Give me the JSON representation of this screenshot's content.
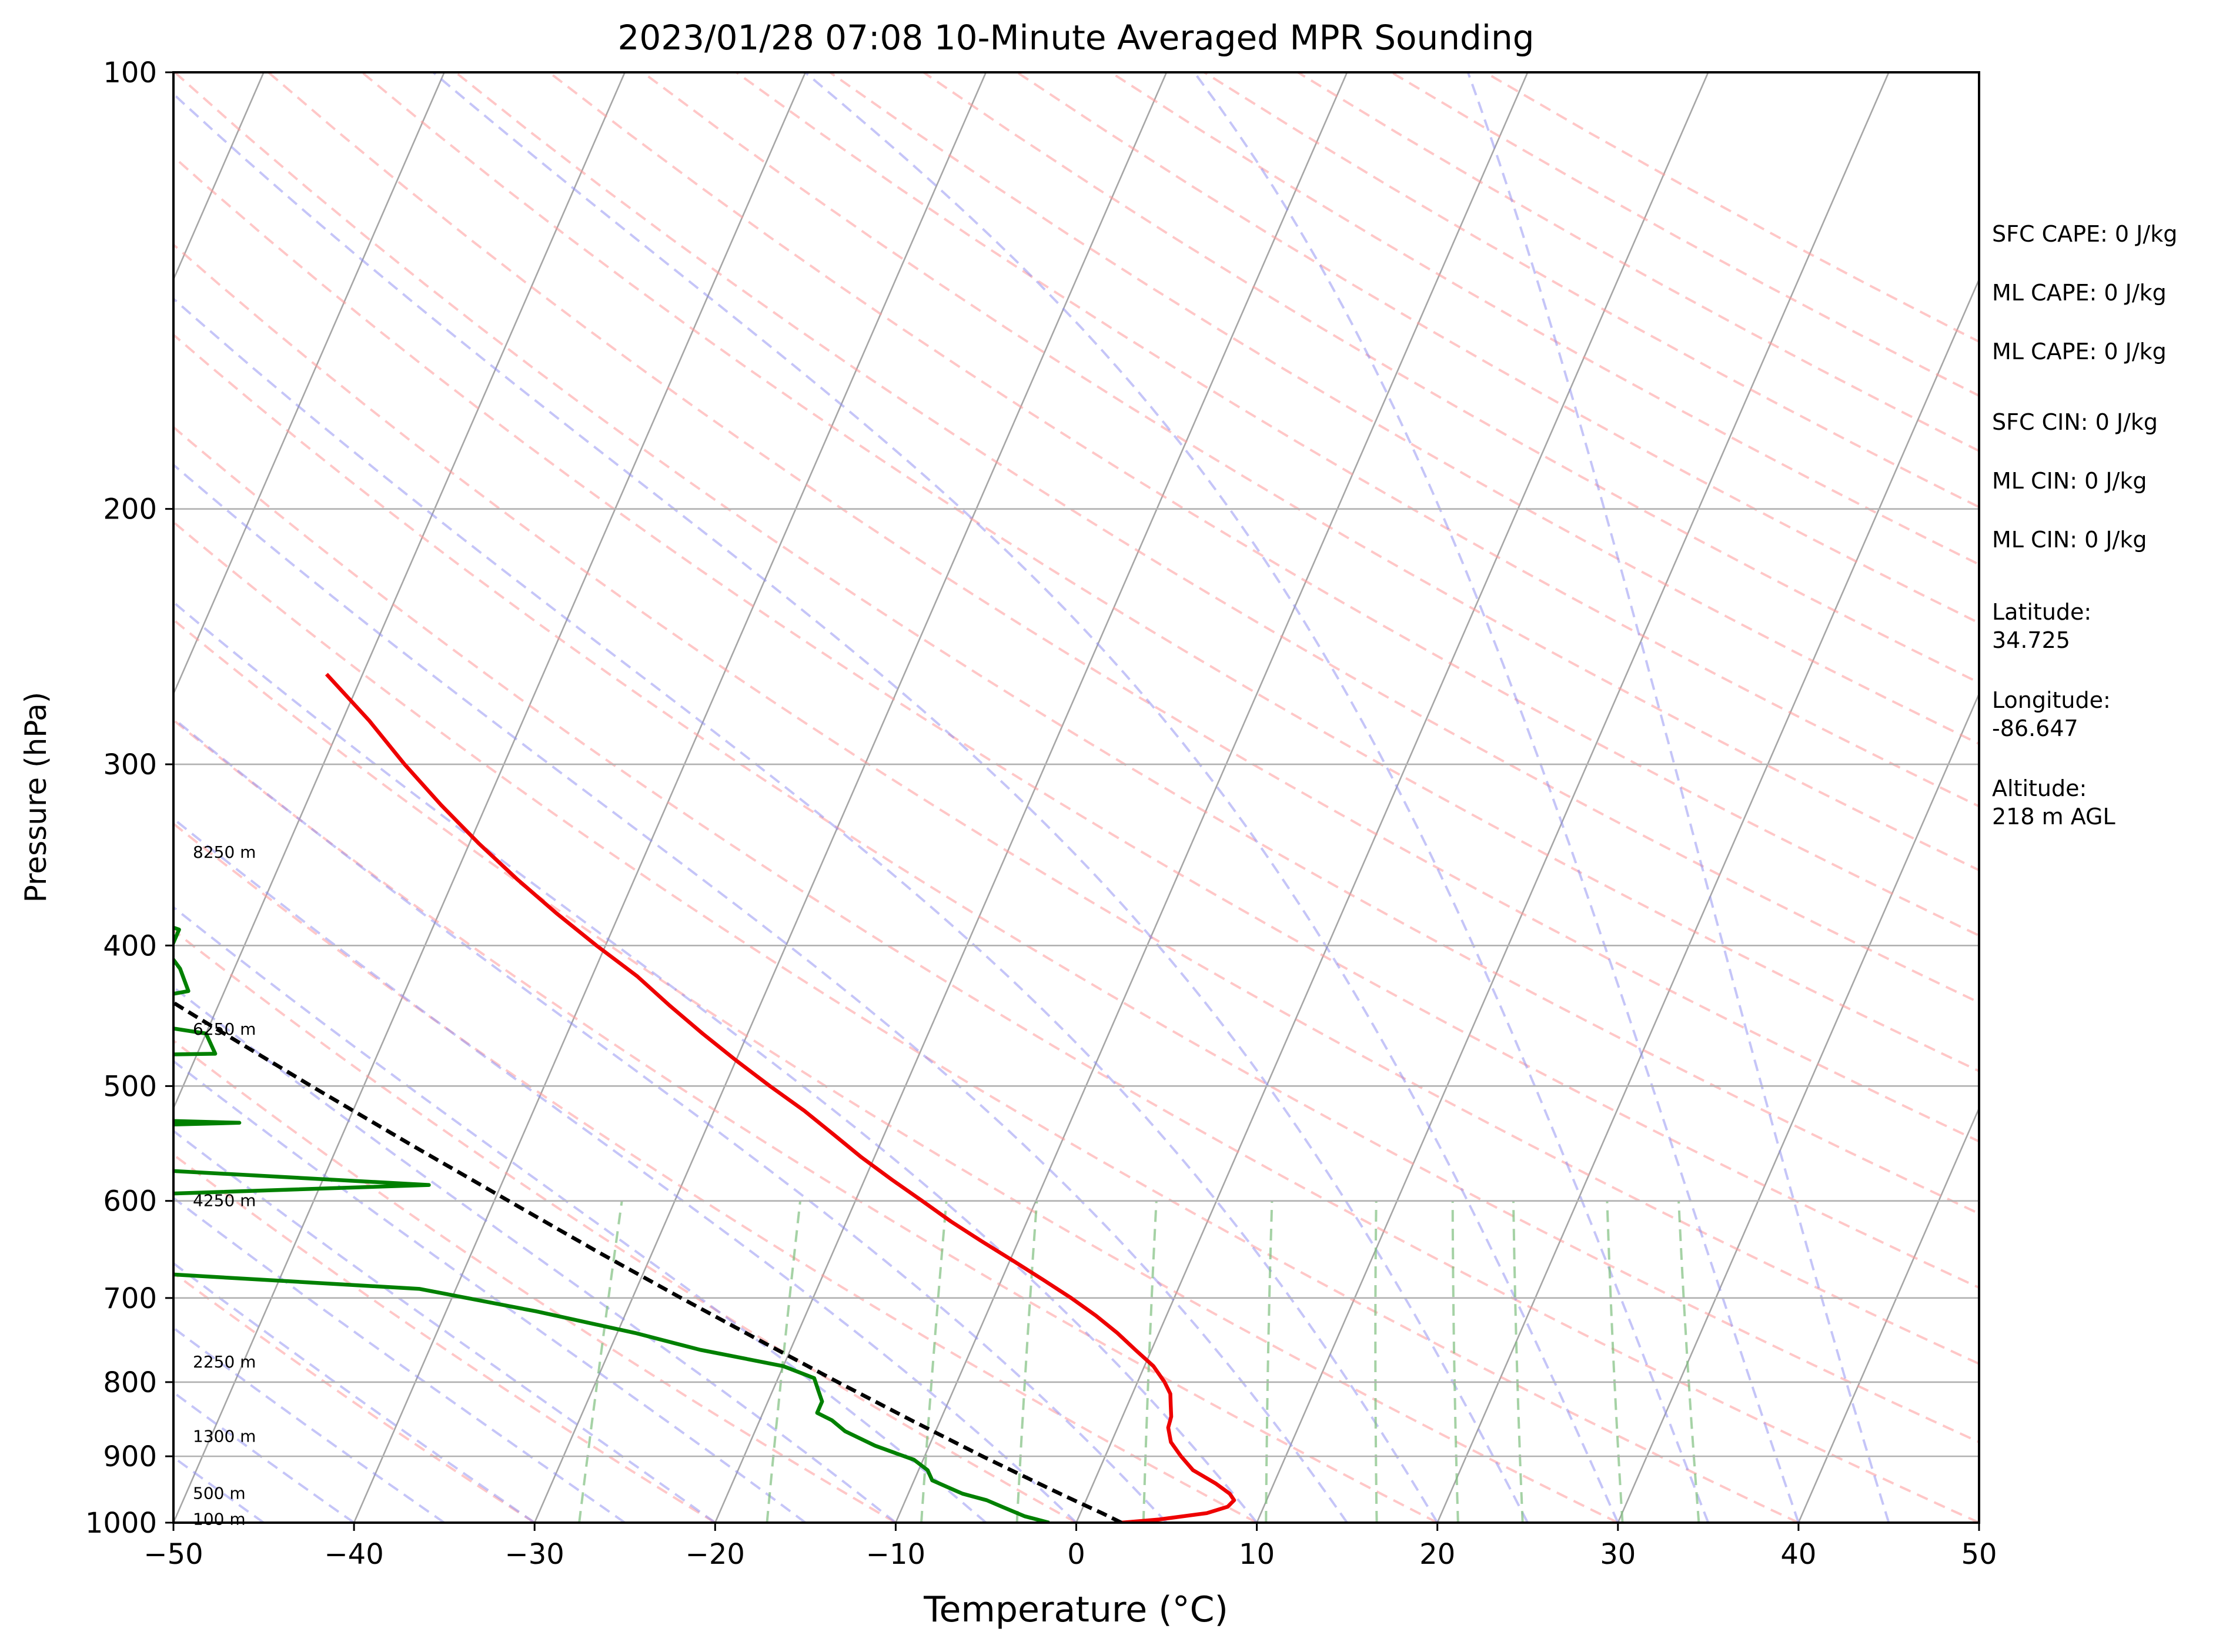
{
  "chart_data": {
    "type": "line",
    "subtype": "skew-T log-P sounding",
    "title": "2023/01/28 07:08 10-Minute Averaged MPR Sounding",
    "xlabel": "Temperature (°C)",
    "ylabel": "Pressure (hPa)",
    "xlim": [
      -50,
      50
    ],
    "ylim": [
      1000,
      100
    ],
    "y_scale": "log",
    "x_ticks": [
      "−50",
      "−40",
      "−30",
      "−20",
      "−10",
      "0",
      "10",
      "20",
      "30",
      "40",
      "50"
    ],
    "y_ticks": [
      "100",
      "200",
      "300",
      "400",
      "500",
      "600",
      "700",
      "800",
      "900",
      "1000"
    ],
    "grid": "horizontal isobars",
    "height_labels": [
      {
        "text": "8250 m",
        "pressure": 345
      },
      {
        "text": "6250 m",
        "pressure": 457
      },
      {
        "text": "4250 m",
        "pressure": 600
      },
      {
        "text": "2250 m",
        "pressure": 775
      },
      {
        "text": "1300 m",
        "pressure": 872
      },
      {
        "text": "500 m",
        "pressure": 955
      },
      {
        "text": "100 m",
        "pressure": 995
      }
    ],
    "series": [
      {
        "role": "temperature",
        "color": "#ee0000",
        "pressure": [
          1000,
          995,
          985,
          975,
          965,
          955,
          940,
          920,
          900,
          880,
          860,
          845,
          830,
          815,
          800,
          780,
          760,
          740,
          720,
          700,
          680,
          660,
          640,
          620,
          600,
          580,
          560,
          540,
          520,
          500,
          480,
          460,
          440,
          420,
          400,
          380,
          360,
          340,
          320,
          300,
          280,
          260
        ],
        "temperature": [
          2.5,
          4.5,
          7.0,
          8.0,
          8.2,
          7.8,
          6.8,
          5.2,
          4.2,
          3.3,
          2.8,
          2.7,
          2.4,
          2.1,
          1.5,
          0.5,
          -0.9,
          -2.3,
          -3.9,
          -5.7,
          -7.7,
          -9.8,
          -12.0,
          -14.2,
          -16.3,
          -18.5,
          -20.7,
          -22.8,
          -25.0,
          -27.5,
          -30.0,
          -32.5,
          -35.0,
          -37.5,
          -40.5,
          -43.5,
          -46.5,
          -49.5,
          -52.5,
          -55.5,
          -58.5,
          -62.0
        ]
      },
      {
        "role": "dewpoint",
        "color": "#008000",
        "pressure": [
          1000,
          990,
          975,
          965,
          955,
          945,
          935,
          920,
          905,
          885,
          865,
          850,
          840,
          825,
          810,
          795,
          780,
          760,
          740,
          715,
          690,
          670,
          665,
          605,
          600,
          585,
          570,
          555,
          540,
          530,
          520,
          510,
          480,
          475,
          460,
          445,
          430,
          415,
          405,
          390,
          370,
          355,
          335,
          320,
          315,
          300,
          290,
          280,
          265,
          262,
          261
        ],
        "temperature": [
          -1.5,
          -3,
          -4.5,
          -5.5,
          -7,
          -8,
          -9,
          -9.5,
          -10.5,
          -13,
          -15,
          -16,
          -17,
          -17,
          -17.5,
          -18,
          -20,
          -25,
          -29,
          -35,
          -42,
          -60,
          -72,
          -72,
          -70,
          -44,
          -61,
          -76,
          -81,
          -56,
          -81,
          -83,
          -83,
          -59,
          -60,
          -68,
          -62,
          -63,
          -64,
          -64,
          -70,
          -77,
          -74,
          -77,
          -76,
          -80,
          -91,
          -102,
          -101,
          -100,
          -76
        ]
      },
      {
        "role": "parcel-profile",
        "color": "#000000",
        "pressure": [
          1000,
          985,
          970,
          955,
          940,
          900,
          850,
          800,
          750,
          700,
          650,
          600,
          550,
          500,
          450,
          400,
          350,
          300,
          270
        ],
        "temperature": [
          2.5,
          1.2,
          -0.2,
          -1.6,
          -3.0,
          -6.8,
          -11.6,
          -16.6,
          -21.8,
          -27.3,
          -33.1,
          -39.2,
          -45.8,
          -52.9,
          -60.6,
          -69.1,
          -78.5,
          -89.1,
          -96.1
        ]
      }
    ],
    "reference_lines": {
      "dry_adiabats_color": "#ff9999",
      "moist_adiabats_color": "#8c8cf2",
      "mixing_ratio_color": "#7fbf7f",
      "isotherms_color": "#a6a6a6"
    }
  },
  "info": {
    "sfc_cape": "SFC CAPE: 0 J/kg",
    "ml_cape_1": "ML CAPE: 0 J/kg",
    "ml_cape_2": "ML CAPE: 0 J/kg",
    "sfc_cin": "SFC CIN: 0 J/kg",
    "ml_cin_1": "ML CIN: 0 J/kg",
    "ml_cin_2": "ML CIN: 0 J/kg",
    "latitude_label": "Latitude:",
    "latitude_value": "34.725",
    "longitude_label": "Longitude:",
    "longitude_value": "-86.647",
    "altitude_label": "Altitude:",
    "altitude_value": "218 m AGL"
  }
}
